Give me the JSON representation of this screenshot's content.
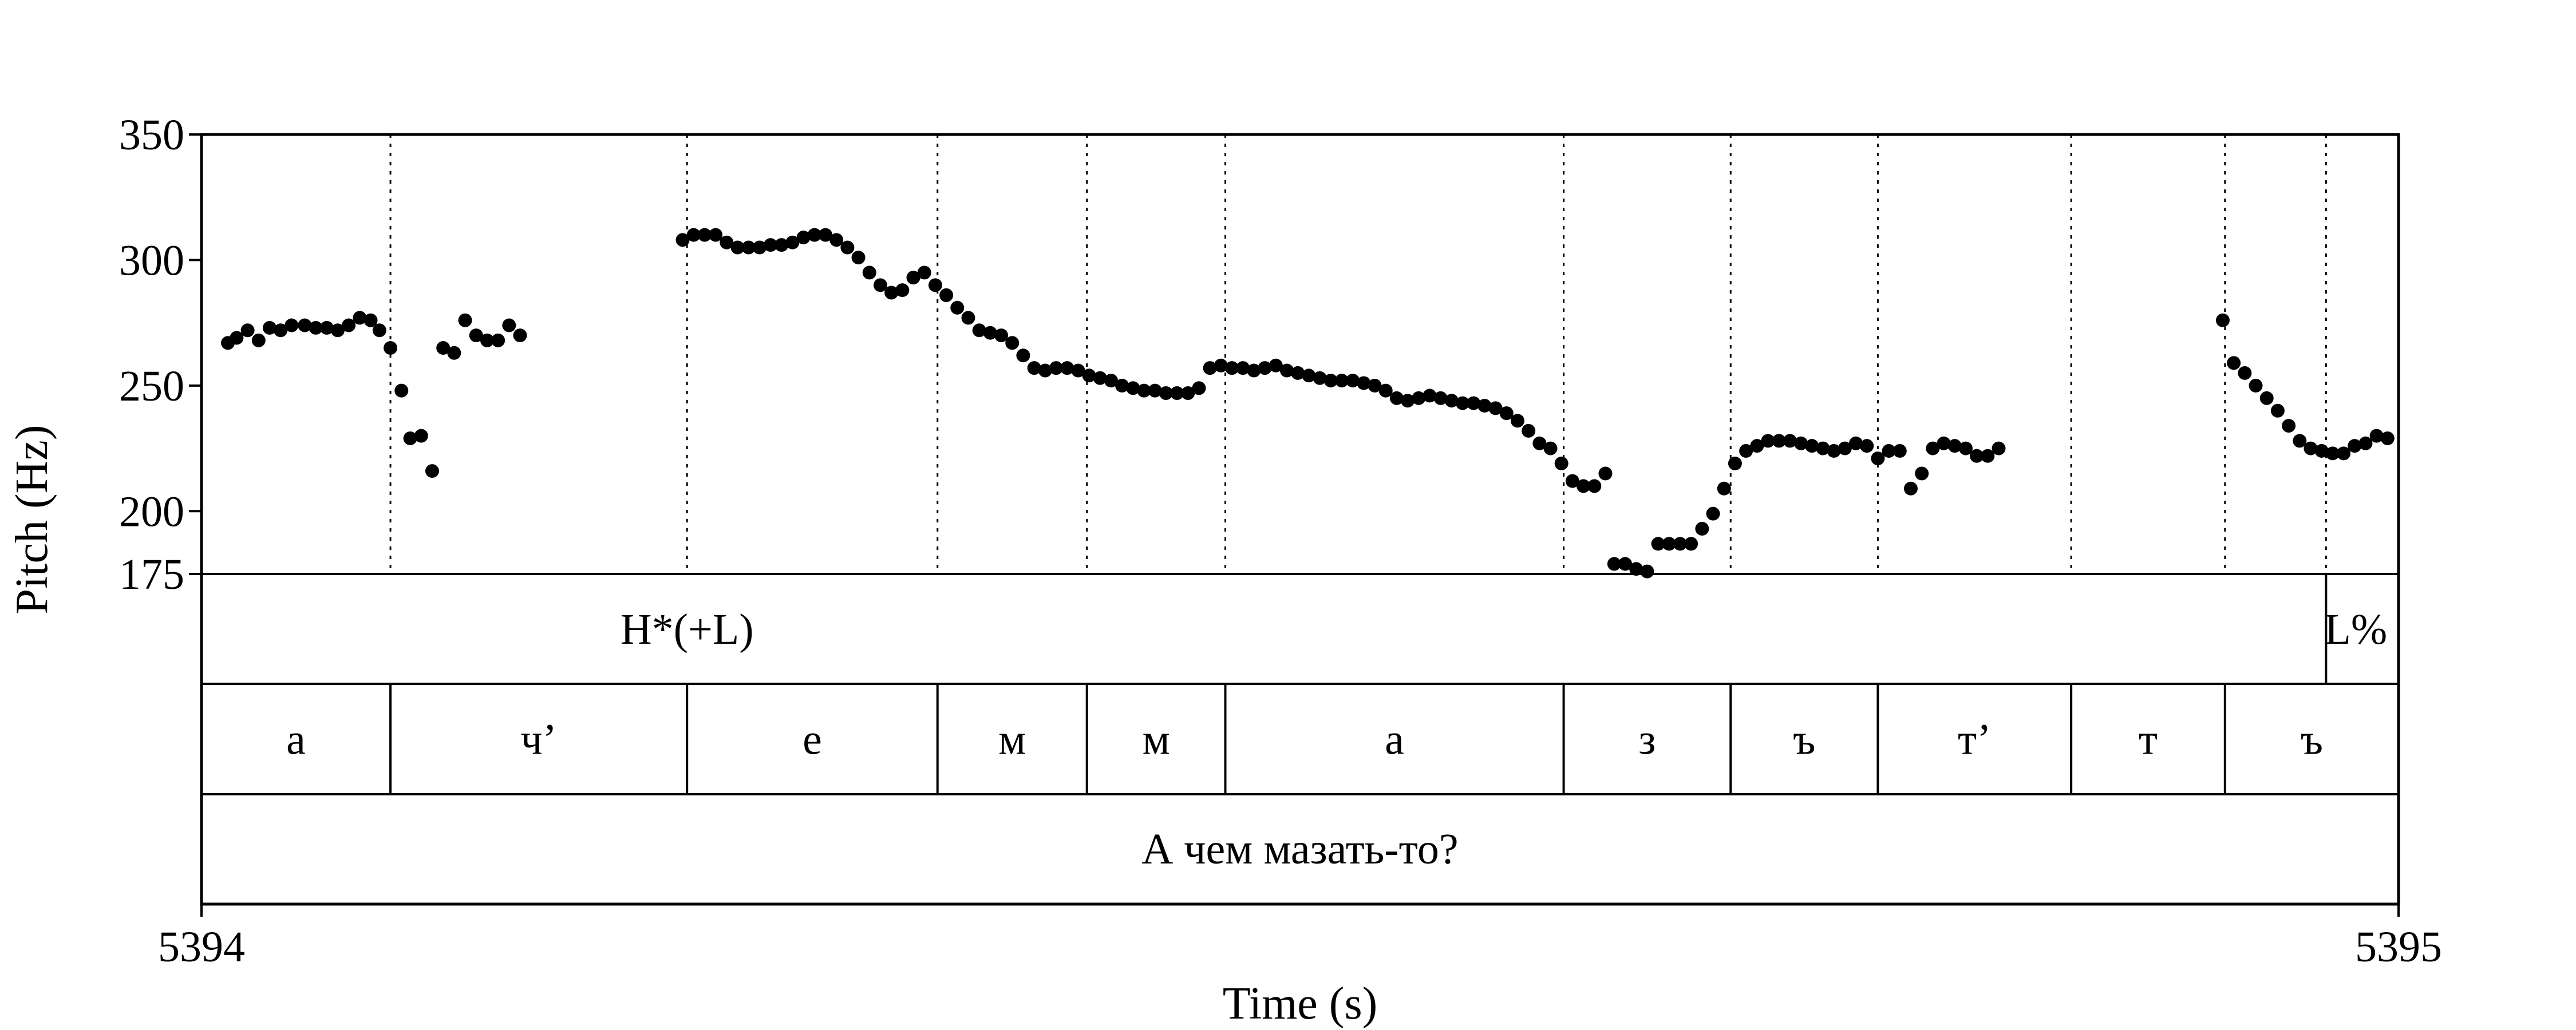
{
  "chart_data": {
    "type": "scatter",
    "title": "",
    "xlabel": "Time (s)",
    "ylabel": "Pitch (Hz)",
    "xlim": [
      5394,
      5395
    ],
    "ylim": [
      175,
      350
    ],
    "x_ticks": [
      {
        "value": 5394,
        "label": "5394"
      },
      {
        "value": 5395,
        "label": "5395"
      }
    ],
    "y_ticks": [
      {
        "value": 175,
        "label": "175"
      },
      {
        "value": 200,
        "label": "200"
      },
      {
        "value": 250,
        "label": "250"
      },
      {
        "value": 300,
        "label": "300"
      },
      {
        "value": 350,
        "label": "350"
      }
    ],
    "grid": false,
    "series": [
      {
        "points": [
          [
            5394.012,
            267
          ],
          [
            5394.016,
            269
          ],
          [
            5394.021,
            272
          ],
          [
            5394.026,
            268
          ],
          [
            5394.031,
            273
          ],
          [
            5394.036,
            272
          ],
          [
            5394.041,
            274
          ],
          [
            5394.047,
            274
          ],
          [
            5394.052,
            273
          ],
          [
            5394.057,
            273
          ],
          [
            5394.062,
            272
          ],
          [
            5394.067,
            274
          ],
          [
            5394.072,
            277
          ],
          [
            5394.077,
            276
          ],
          [
            5394.081,
            272
          ],
          [
            5394.086,
            265
          ],
          [
            5394.091,
            248
          ],
          [
            5394.095,
            229
          ],
          [
            5394.1,
            230
          ],
          [
            5394.105,
            216
          ],
          [
            5394.11,
            265
          ],
          [
            5394.115,
            263
          ],
          [
            5394.12,
            276
          ],
          [
            5394.125,
            270
          ],
          [
            5394.13,
            268
          ],
          [
            5394.135,
            268
          ],
          [
            5394.14,
            274
          ],
          [
            5394.145,
            270
          ],
          [
            5394.219,
            308
          ],
          [
            5394.224,
            310
          ],
          [
            5394.229,
            310
          ],
          [
            5394.234,
            310
          ],
          [
            5394.239,
            307
          ],
          [
            5394.244,
            305
          ],
          [
            5394.249,
            305
          ],
          [
            5394.254,
            305
          ],
          [
            5394.259,
            306
          ],
          [
            5394.264,
            306
          ],
          [
            5394.269,
            307
          ],
          [
            5394.274,
            309
          ],
          [
            5394.279,
            310
          ],
          [
            5394.284,
            310
          ],
          [
            5394.289,
            308
          ],
          [
            5394.294,
            305
          ],
          [
            5394.299,
            301
          ],
          [
            5394.304,
            295
          ],
          [
            5394.309,
            290
          ],
          [
            5394.314,
            287
          ],
          [
            5394.319,
            288
          ],
          [
            5394.324,
            293
          ],
          [
            5394.329,
            295
          ],
          [
            5394.334,
            290
          ],
          [
            5394.339,
            286
          ],
          [
            5394.344,
            281
          ],
          [
            5394.349,
            277
          ],
          [
            5394.354,
            272
          ],
          [
            5394.359,
            271
          ],
          [
            5394.364,
            270
          ],
          [
            5394.369,
            267
          ],
          [
            5394.374,
            262
          ],
          [
            5394.379,
            257
          ],
          [
            5394.384,
            256
          ],
          [
            5394.389,
            257
          ],
          [
            5394.394,
            257
          ],
          [
            5394.399,
            256
          ],
          [
            5394.404,
            254
          ],
          [
            5394.409,
            253
          ],
          [
            5394.414,
            252
          ],
          [
            5394.419,
            250
          ],
          [
            5394.424,
            249
          ],
          [
            5394.429,
            248
          ],
          [
            5394.434,
            248
          ],
          [
            5394.439,
            247
          ],
          [
            5394.444,
            247
          ],
          [
            5394.449,
            247
          ],
          [
            5394.454,
            249
          ],
          [
            5394.459,
            257
          ],
          [
            5394.464,
            258
          ],
          [
            5394.469,
            257
          ],
          [
            5394.474,
            257
          ],
          [
            5394.479,
            256
          ],
          [
            5394.484,
            257
          ],
          [
            5394.489,
            258
          ],
          [
            5394.494,
            256
          ],
          [
            5394.499,
            255
          ],
          [
            5394.504,
            254
          ],
          [
            5394.509,
            253
          ],
          [
            5394.514,
            252
          ],
          [
            5394.519,
            252
          ],
          [
            5394.524,
            252
          ],
          [
            5394.529,
            251
          ],
          [
            5394.534,
            250
          ],
          [
            5394.539,
            248
          ],
          [
            5394.544,
            245
          ],
          [
            5394.549,
            244
          ],
          [
            5394.554,
            245
          ],
          [
            5394.559,
            246
          ],
          [
            5394.564,
            245
          ],
          [
            5394.569,
            244
          ],
          [
            5394.574,
            243
          ],
          [
            5394.579,
            243
          ],
          [
            5394.584,
            242
          ],
          [
            5394.589,
            241
          ],
          [
            5394.594,
            239
          ],
          [
            5394.599,
            236
          ],
          [
            5394.604,
            232
          ],
          [
            5394.609,
            227
          ],
          [
            5394.614,
            225
          ],
          [
            5394.619,
            219
          ],
          [
            5394.624,
            212
          ],
          [
            5394.629,
            210
          ],
          [
            5394.634,
            210
          ],
          [
            5394.639,
            215
          ],
          [
            5394.643,
            179
          ],
          [
            5394.648,
            179
          ],
          [
            5394.653,
            177
          ],
          [
            5394.658,
            176
          ],
          [
            5394.663,
            187
          ],
          [
            5394.668,
            187
          ],
          [
            5394.673,
            187
          ],
          [
            5394.678,
            187
          ],
          [
            5394.683,
            193
          ],
          [
            5394.688,
            199
          ],
          [
            5394.693,
            209
          ],
          [
            5394.698,
            219
          ],
          [
            5394.703,
            224
          ],
          [
            5394.708,
            226
          ],
          [
            5394.713,
            228
          ],
          [
            5394.718,
            228
          ],
          [
            5394.723,
            228
          ],
          [
            5394.728,
            227
          ],
          [
            5394.733,
            226
          ],
          [
            5394.738,
            225
          ],
          [
            5394.743,
            224
          ],
          [
            5394.748,
            225
          ],
          [
            5394.753,
            227
          ],
          [
            5394.758,
            226
          ],
          [
            5394.763,
            221
          ],
          [
            5394.768,
            224
          ],
          [
            5394.773,
            224
          ],
          [
            5394.778,
            209
          ],
          [
            5394.783,
            215
          ],
          [
            5394.788,
            225
          ],
          [
            5394.793,
            227
          ],
          [
            5394.798,
            226
          ],
          [
            5394.803,
            225
          ],
          [
            5394.808,
            222
          ],
          [
            5394.813,
            222
          ],
          [
            5394.818,
            225
          ],
          [
            5394.92,
            276
          ],
          [
            5394.925,
            259
          ],
          [
            5394.93,
            255
          ],
          [
            5394.935,
            250
          ],
          [
            5394.94,
            245
          ],
          [
            5394.945,
            240
          ],
          [
            5394.95,
            234
          ],
          [
            5394.955,
            228
          ],
          [
            5394.96,
            225
          ],
          [
            5394.965,
            224
          ],
          [
            5394.97,
            223
          ],
          [
            5394.975,
            223
          ],
          [
            5394.98,
            226
          ],
          [
            5394.985,
            227
          ],
          [
            5394.99,
            230
          ],
          [
            5394.995,
            229
          ]
        ]
      }
    ],
    "tiers": {
      "tones": {
        "points": [
          {
            "time": 5394.221,
            "label": "H*(+L)",
            "anchor": "middle",
            "mark": false
          },
          {
            "time": 5394.967,
            "label": "L%",
            "anchor": "end",
            "mark": true
          }
        ]
      },
      "segments": {
        "boundaries": [
          5394.086,
          5394.221,
          5394.335,
          5394.403,
          5394.466,
          5394.62,
          5394.696,
          5394.763,
          5394.851,
          5394.921
        ],
        "labels": [
          "а",
          "ч’",
          "е",
          "м",
          "м",
          "а",
          "з",
          "ъ",
          "т’",
          "т",
          "ъ"
        ]
      },
      "sentence": {
        "label": "А чем мазать-то?"
      }
    },
    "plot_dotted_lines": [
      5394.086,
      5394.221,
      5394.335,
      5394.403,
      5394.466,
      5394.62,
      5394.696,
      5394.763,
      5394.851,
      5394.921,
      5394.967
    ]
  }
}
